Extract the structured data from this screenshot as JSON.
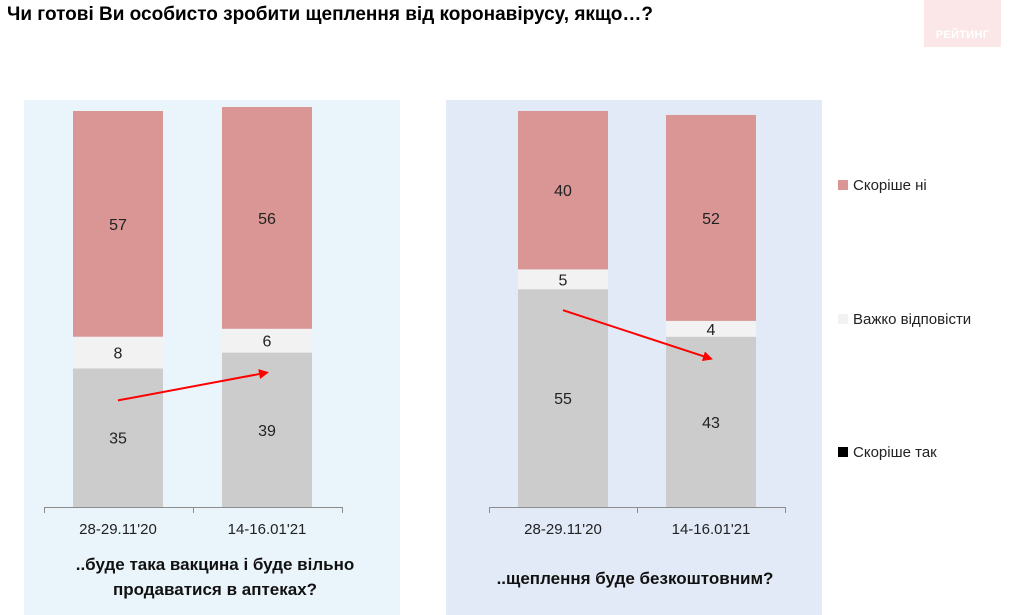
{
  "title": "Чи готові Ви особисто зробити щеплення від коронавірусу, якщо…?",
  "logo_text": "РЕЙТИНГ",
  "chart_data": {
    "type": "bar",
    "stacked": true,
    "ylim": [
      0,
      100
    ],
    "grid": false,
    "legend_position": "right",
    "colors": {
      "Скоріше так": "#9bbb59",
      "Важко відповісти": "#f2f2f2",
      "Скоріше  ні": "#d99694",
      "arrow": "#ff0000",
      "panel_0_bg": "#eaf5fb",
      "panel_1_bg": "#e2eaf7"
    },
    "legend": [
      "Скоріше  ні",
      "Важко відповісти",
      "Скоріше  так"
    ],
    "groups": [
      {
        "caption_lines": [
          "..буде така вакцина і буде вільно",
          "продаватися в аптеках?"
        ],
        "categories": [
          "28-29.11'20",
          "14-16.01'21"
        ],
        "series": [
          {
            "name": "Скоріше  так",
            "values": [
              35,
              39
            ]
          },
          {
            "name": "Важко відповісти",
            "values": [
              8,
              6
            ]
          },
          {
            "name": "Скоріше  ні",
            "values": [
              57,
              56
            ]
          }
        ],
        "trend": "up"
      },
      {
        "caption_lines": [
          "..щеплення буде безкоштовним?"
        ],
        "categories": [
          "28-29.11'20",
          "14-16.01'21"
        ],
        "series": [
          {
            "name": "Скоріше  так",
            "values": [
              55,
              43
            ]
          },
          {
            "name": "Важко відповісти",
            "values": [
              5,
              4
            ]
          },
          {
            "name": "Скоріше  ні",
            "values": [
              40,
              52
            ]
          }
        ],
        "trend": "down"
      }
    ]
  }
}
